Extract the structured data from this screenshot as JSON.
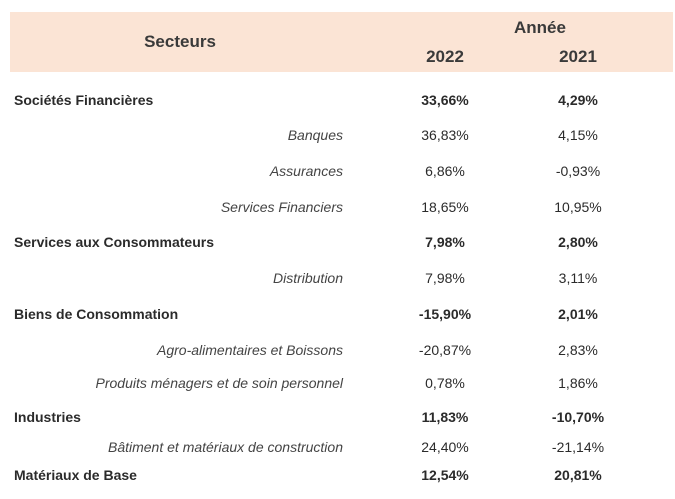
{
  "header": {
    "secteurs": "Secteurs",
    "annee": "Année",
    "year_a": "2022",
    "year_b": "2021"
  },
  "rows": [
    {
      "label": "Sociétés Financières",
      "v2022": "33,66%",
      "v2021": "4,29%"
    },
    {
      "label": "Banques",
      "v2022": "36,83%",
      "v2021": "4,15%"
    },
    {
      "label": "Assurances",
      "v2022": "6,86%",
      "v2021": "-0,93%"
    },
    {
      "label": "Services Financiers",
      "v2022": "18,65%",
      "v2021": "10,95%"
    },
    {
      "label": "Services aux Consommateurs",
      "v2022": "7,98%",
      "v2021": "2,80%"
    },
    {
      "label": "Distribution",
      "v2022": "7,98%",
      "v2021": "3,11%"
    },
    {
      "label": "Biens de Consommation",
      "v2022": "-15,90%",
      "v2021": "2,01%"
    },
    {
      "label": "Agro-alimentaires et Boissons",
      "v2022": "-20,87%",
      "v2021": "2,83%"
    },
    {
      "label": "Produits ménagers et de soin personnel",
      "v2022": "0,78%",
      "v2021": "1,86%"
    },
    {
      "label": "Industries",
      "v2022": "11,83%",
      "v2021": "-10,70%"
    },
    {
      "label": "Bâtiment et matériaux de construction",
      "v2022": "24,40%",
      "v2021": "-21,14%"
    },
    {
      "label": "Matériaux de Base",
      "v2022": "12,54%",
      "v2021": "20,81%"
    }
  ]
}
